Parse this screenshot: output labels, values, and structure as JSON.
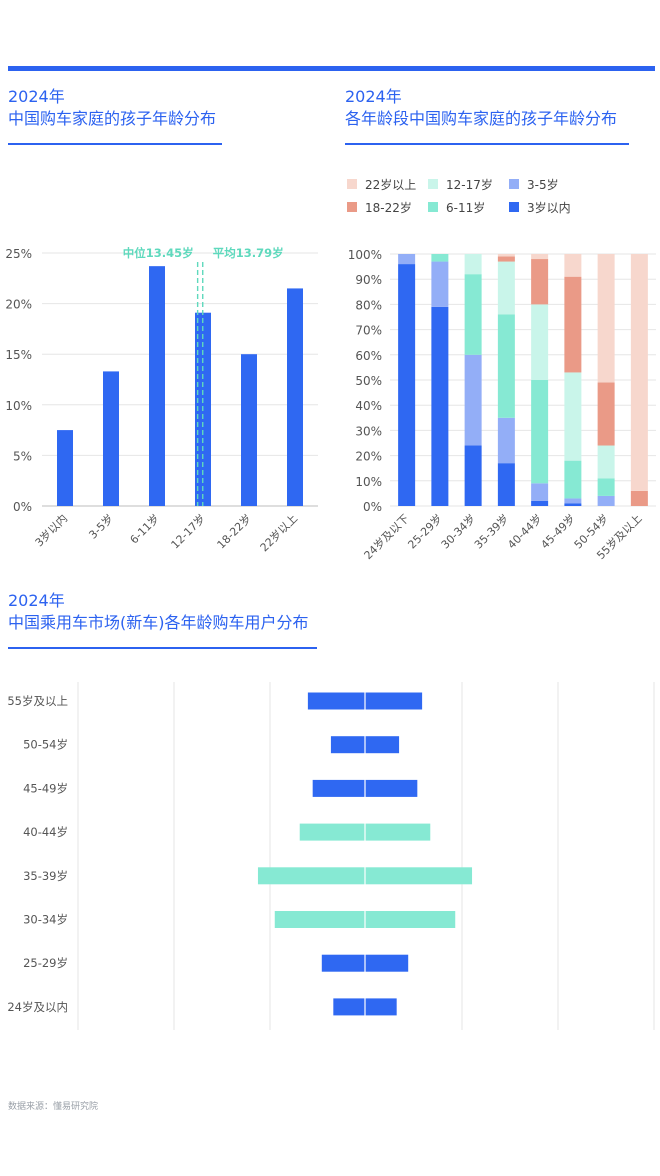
{
  "colors": {
    "accent": "#2c62f0",
    "bar": "#2f68f2",
    "teal": "#86e9d3",
    "marker": "#5fd9bd",
    "grid": "#e6e6e6",
    "axis_text": "#555555"
  },
  "charts": {
    "left": {
      "title_line1": "2024年",
      "title_line2": "中国购车家庭的孩子年龄分布"
    },
    "right": {
      "title_line1": "2024年",
      "title_line2": "各年龄段中国购车家庭的孩子年龄分布"
    },
    "bottom": {
      "title_line1": "2024年",
      "title_line2": "中国乘用车市场(新车)各年龄购车用户分布"
    }
  },
  "source": "数据来源：懂易研究院",
  "chart_data": [
    {
      "type": "bar",
      "title": "2024年 中国购车家庭的孩子年龄分布",
      "categories": [
        "3岁以内",
        "3-5岁",
        "6-11岁",
        "12-17岁",
        "18-22岁",
        "22岁以上"
      ],
      "values": [
        7.5,
        13.3,
        23.7,
        19.1,
        15.0,
        21.5
      ],
      "ylim": [
        0,
        25
      ],
      "yticks": [
        "0%",
        "5%",
        "10%",
        "15%",
        "20%",
        "25%"
      ],
      "grid": true,
      "annotations": [
        {
          "label": "中位13.45岁",
          "x": 13.45
        },
        {
          "label": "平均13.79岁",
          "x": 13.79
        }
      ]
    },
    {
      "type": "bar",
      "stacked": true,
      "title": "2024年 各年龄段中国购车家庭的孩子年龄分布",
      "categories": [
        "24岁及以下",
        "25-29岁",
        "30-34岁",
        "35-39岁",
        "40-44岁",
        "45-49岁",
        "50-54岁",
        "55岁及以上"
      ],
      "ylim": [
        0,
        100
      ],
      "yticks": [
        "0%",
        "10%",
        "20%",
        "30%",
        "40%",
        "50%",
        "60%",
        "70%",
        "80%",
        "90%",
        "100%"
      ],
      "legend_position": "top",
      "series": [
        {
          "name": "3岁以内",
          "color": "#2f68f2",
          "values": [
            96,
            79,
            24,
            17,
            2,
            1,
            0,
            0
          ]
        },
        {
          "name": "3-5岁",
          "color": "#93aef7",
          "values": [
            4,
            18,
            36,
            18,
            7,
            2,
            4,
            0
          ]
        },
        {
          "name": "6-11岁",
          "color": "#86e9d3",
          "values": [
            0,
            3,
            32,
            41,
            41,
            15,
            7,
            0
          ]
        },
        {
          "name": "12-17岁",
          "color": "#c9f5ea",
          "values": [
            0,
            0,
            8,
            21,
            30,
            35,
            13,
            0
          ]
        },
        {
          "name": "18-22岁",
          "color": "#ea9a87",
          "values": [
            0,
            0,
            0,
            2,
            18,
            38,
            25,
            6
          ]
        },
        {
          "name": "22岁以上",
          "color": "#f7d7cd",
          "values": [
            0,
            0,
            0,
            1,
            2,
            9,
            51,
            94
          ]
        }
      ]
    },
    {
      "type": "bar",
      "orientation": "horizontal",
      "title": "2024年 中国乘用车市场(新车)各年龄购车用户分布",
      "categories": [
        "55岁及以上",
        "50-54岁",
        "45-49岁",
        "40-44岁",
        "35-39岁",
        "30-34岁",
        "25-29岁",
        "24岁及以内"
      ],
      "values": [
        11.9,
        7.1,
        10.9,
        13.6,
        22.3,
        18.8,
        9.0,
        6.6
      ],
      "highlight": [
        "40-44岁",
        "35-39岁",
        "30-34岁"
      ],
      "grid": true
    }
  ]
}
